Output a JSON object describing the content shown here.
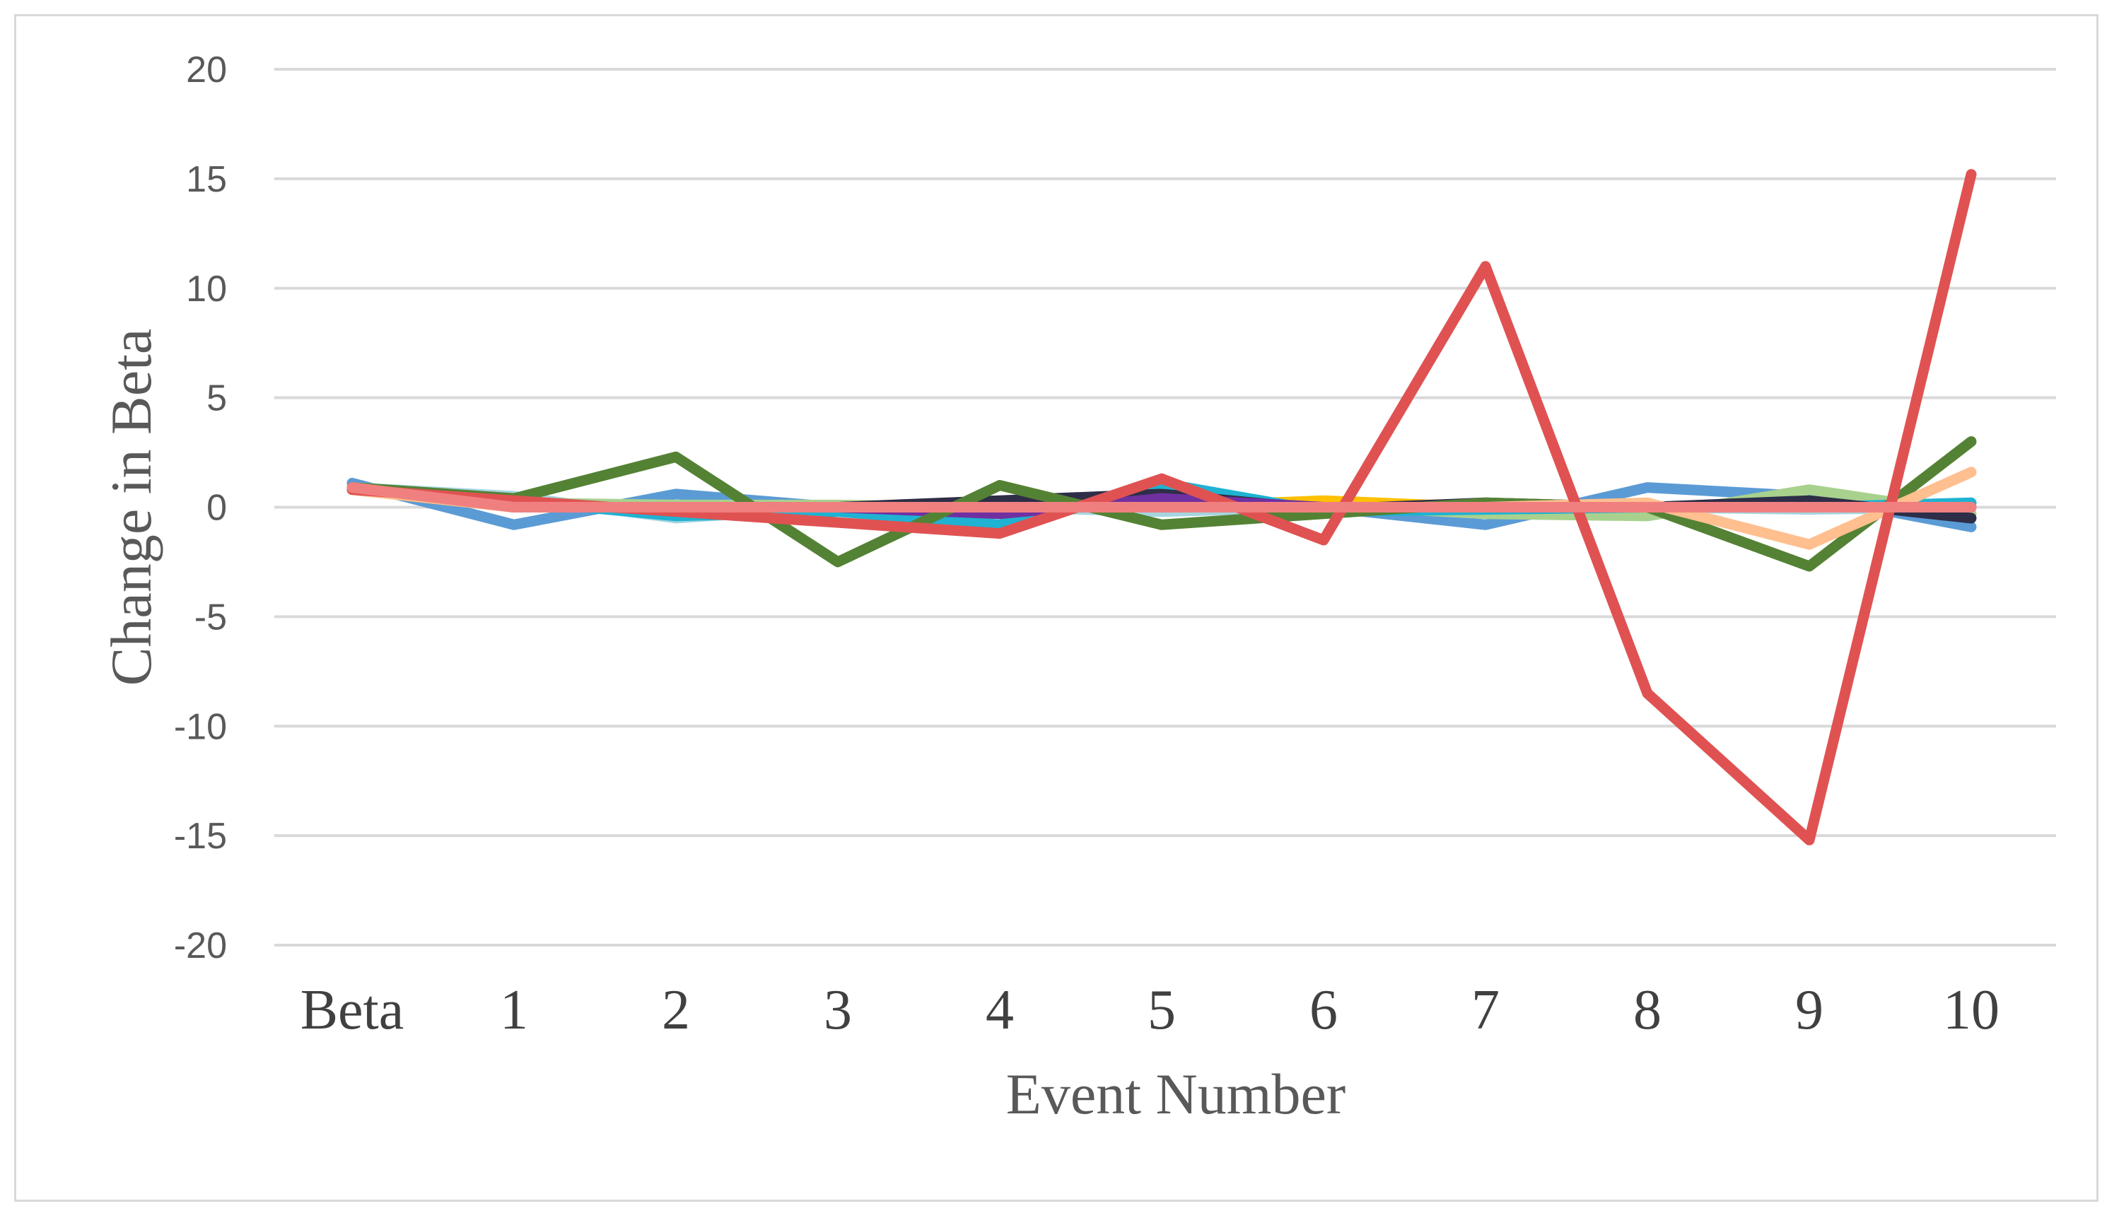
{
  "chart_data": {
    "type": "line",
    "title": "",
    "xlabel": "Event Number",
    "ylabel": "Change in Beta",
    "categories": [
      "Beta",
      "1",
      "2",
      "3",
      "4",
      "5",
      "6",
      "7",
      "8",
      "9",
      "10"
    ],
    "ylim": [
      -20,
      20
    ],
    "yticks": [
      "20",
      "15",
      "10",
      "5",
      "0",
      "-5",
      "-10",
      "-15",
      "-20"
    ],
    "grid": true,
    "legend": "none",
    "series": [
      {
        "color": "#5b9bd5",
        "values": [
          1.1,
          -0.8,
          0.6,
          0.0,
          -0.2,
          0.3,
          0.0,
          -0.8,
          0.9,
          0.5,
          -0.9
        ]
      },
      {
        "color": "#a5d6e0",
        "values": [
          0.9,
          0.5,
          -0.5,
          0.0,
          0.0,
          -0.2,
          0.0,
          0.0,
          0.0,
          -0.1,
          0.0
        ]
      },
      {
        "color": "#a9d18e",
        "values": [
          0.8,
          0.2,
          0.1,
          0.1,
          0.0,
          0.0,
          0.1,
          -0.3,
          -0.4,
          0.8,
          -0.3
        ]
      },
      {
        "color": "#ffc000",
        "values": [
          0.8,
          0.0,
          0.0,
          0.0,
          0.0,
          0.0,
          0.3,
          0.0,
          0.0,
          0.0,
          0.0
        ]
      },
      {
        "color": "#1fb2d2",
        "values": [
          0.9,
          0.3,
          -0.4,
          -0.2,
          -0.8,
          1.1,
          -0.2,
          -0.1,
          0.0,
          0.0,
          0.2
        ]
      },
      {
        "color": "#2e2e48",
        "values": [
          0.9,
          0.0,
          0.0,
          0.0,
          0.3,
          0.6,
          -0.1,
          0.2,
          0.0,
          0.3,
          -0.5
        ]
      },
      {
        "color": "#7030a0",
        "values": [
          0.9,
          0.0,
          0.0,
          0.0,
          -0.3,
          0.4,
          0.0,
          0.0,
          0.0,
          0.0,
          0.0
        ]
      },
      {
        "color": "#548235",
        "values": [
          0.9,
          0.4,
          2.3,
          -2.5,
          1.0,
          -0.8,
          -0.3,
          0.2,
          0.0,
          -2.7,
          3.0
        ]
      },
      {
        "color": "#ffbf8f",
        "values": [
          0.8,
          0.0,
          0.0,
          0.0,
          0.0,
          0.0,
          0.0,
          0.0,
          0.2,
          -1.7,
          1.6
        ]
      },
      {
        "color": "#e05252",
        "values": [
          0.8,
          0.3,
          -0.2,
          -0.7,
          -1.2,
          1.3,
          -1.5,
          11.0,
          -8.5,
          -15.2,
          15.2
        ]
      },
      {
        "color": "#f08080",
        "values": [
          0.9,
          0.0,
          0.0,
          0.0,
          0.0,
          0.0,
          0.0,
          0.0,
          0.0,
          0.0,
          0.0
        ]
      }
    ]
  }
}
